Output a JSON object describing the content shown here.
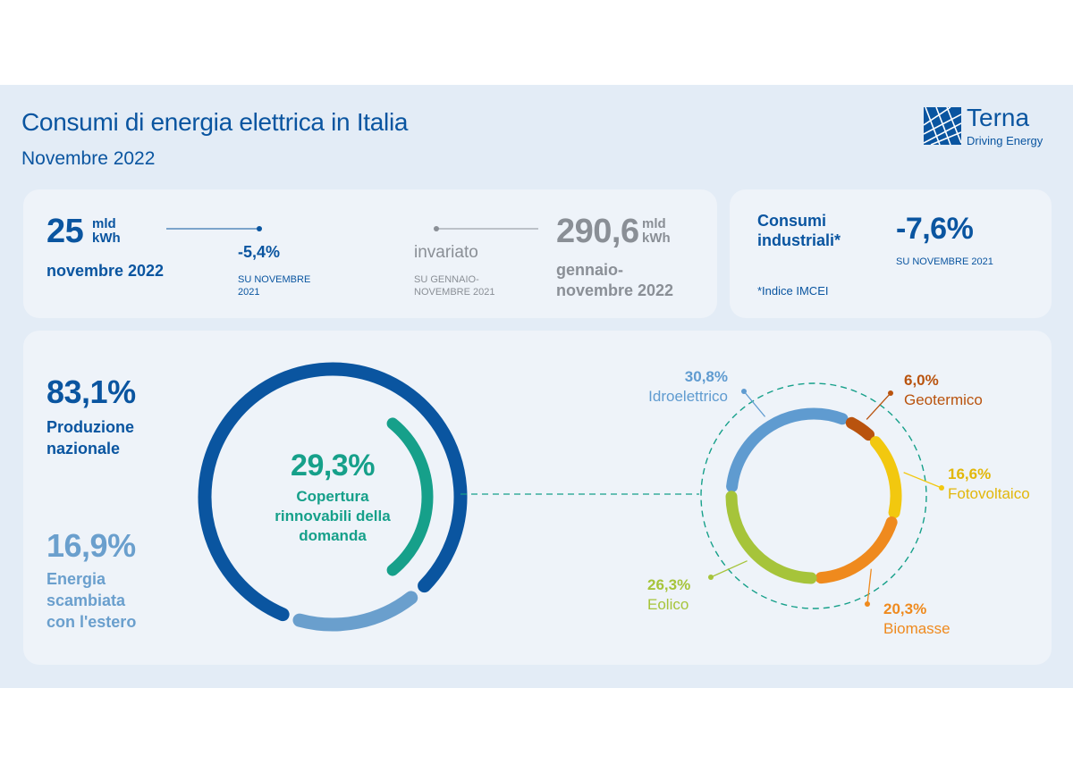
{
  "header": {
    "title": "Consumi di energia elettrica in Italia",
    "subtitle": "Novembre 2022",
    "logo_name": "Terna",
    "logo_tagline": "Driving Energy"
  },
  "kpi_month": {
    "value": "25",
    "unit_line1": "mld",
    "unit_line2": "kWh",
    "period": "novembre 2022",
    "change": "-5,4%",
    "change_ref_line1": "SU NOVEMBRE",
    "change_ref_line2": "2021"
  },
  "kpi_ytd": {
    "value": "290,6",
    "unit_line1": "mld",
    "unit_line2": "kWh",
    "period_line1": "gennaio-",
    "period_line2": "novembre 2022",
    "change": "invariato",
    "change_ref_line1": "SU GENNAIO-",
    "change_ref_line2": "NOVEMBRE 2021"
  },
  "industrial": {
    "label_line1": "Consumi",
    "label_line2": "industriali*",
    "value": "-7,6%",
    "ref": "SU NOVEMBRE 2021",
    "note": "*Indice IMCEI"
  },
  "coverage": {
    "national_value": "83,1%",
    "national_label_line1": "Produzione",
    "national_label_line2": "nazionale",
    "foreign_value": "16,9%",
    "foreign_label_line1": "Energia",
    "foreign_label_line2": "scambiata",
    "foreign_label_line3": "con l'estero",
    "renew_value": "29,3%",
    "renew_label_line1": "Copertura",
    "renew_label_line2": "rinnovabili della",
    "renew_label_line3": "domanda"
  },
  "renewables_labels": {
    "idro_value": "30,8%",
    "idro_name": "Idroelettrico",
    "geo_value": "6,0%",
    "geo_name": "Geotermico",
    "foto_value": "16,6%",
    "foto_name": "Fotovoltaico",
    "bio_value": "20,3%",
    "bio_name": "Biomasse",
    "eol_value": "26,3%",
    "eol_name": "Eolico"
  },
  "colors": {
    "dark_blue": "#0a55a0",
    "light_blue": "#6a9fcd",
    "teal": "#16a08a",
    "gray": "#8a8f96",
    "idro": "#5f9bd0",
    "geo": "#b9530e",
    "foto": "#f2c80f",
    "bio": "#ef8a1e",
    "eol": "#a6c43a"
  },
  "chart_data": [
    {
      "type": "pie",
      "categories": [
        "Produzione nazionale",
        "Energia scambiata con l'estero"
      ],
      "values": [
        83.1,
        16.9
      ]
    },
    {
      "type": "pie",
      "categories": [
        "Copertura rinnovabili della domanda"
      ],
      "values": [
        29.3
      ]
    },
    {
      "type": "pie",
      "categories": [
        "Idroelettrico",
        "Geotermico",
        "Fotovoltaico",
        "Biomasse",
        "Eolico"
      ],
      "values": [
        30.8,
        6.0,
        16.6,
        20.3,
        26.3
      ]
    }
  ]
}
